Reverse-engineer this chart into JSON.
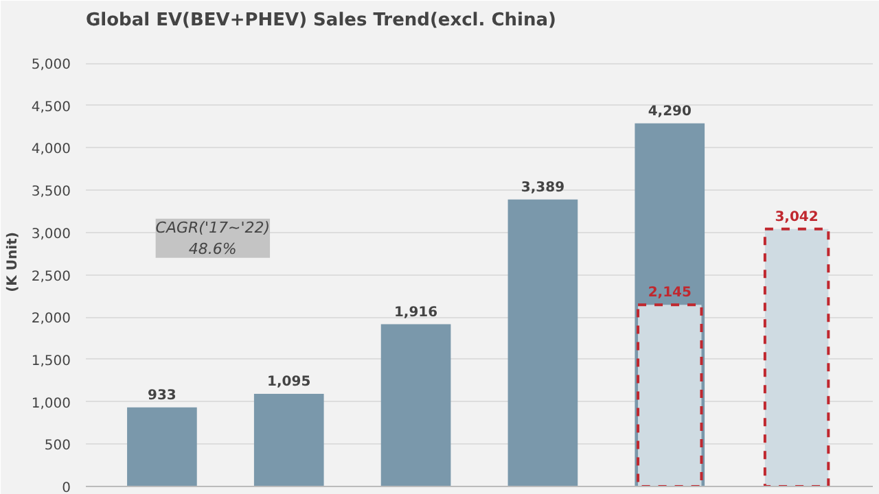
{
  "chart_data": {
    "type": "bar",
    "title": "Global EV(BEV+PHEV)  Sales Trend(excl. China)",
    "ylabel": "(K Unit)",
    "categories": [
      null,
      null,
      null,
      null,
      null,
      null
    ],
    "series": [
      {
        "color": "#7a98ab",
        "values": [
          933,
          1095,
          1916,
          3389,
          4290,
          null
        ],
        "value_labels": [
          "933",
          "1,095",
          "1,916",
          "3,389",
          "4,290",
          null
        ]
      },
      {
        "color": "#cfdbe2",
        "values": [
          null,
          null,
          null,
          null,
          2145,
          3042
        ],
        "value_labels": [
          null,
          null,
          null,
          null,
          "2,145",
          "3,042"
        ],
        "line_style": "dashed"
      }
    ],
    "ylim": [
      0,
      5000
    ],
    "yticks": [
      {
        "value": 0,
        "label": "0"
      },
      {
        "value": 500,
        "label": "500"
      },
      {
        "value": 1000,
        "label": "1,000"
      },
      {
        "value": 1500,
        "label": "1,500"
      },
      {
        "value": 2000,
        "label": "2,000"
      },
      {
        "value": 2500,
        "label": "2,500"
      },
      {
        "value": 3000,
        "label": "3,000"
      },
      {
        "value": 3500,
        "label": "3,500"
      },
      {
        "value": 4000,
        "label": "4,000"
      },
      {
        "value": 4500,
        "label": "4,500"
      },
      {
        "value": 5000,
        "label": "5,000"
      }
    ],
    "grid": "y",
    "annotations": [
      "CAGR('17~'22)\n48.6%"
    ]
  }
}
